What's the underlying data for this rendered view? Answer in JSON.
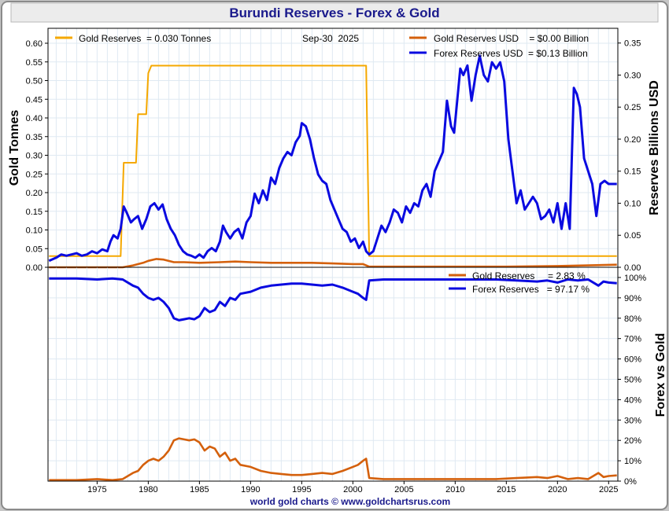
{
  "title": "Burundi Reserves - Forex & Gold",
  "footer": "world gold charts © www.goldchartsrus.com",
  "date_label": "Sep-30  2025",
  "colors": {
    "gold_tonnes": "#f5a800",
    "gold_usd": "#d4600c",
    "forex": "#0a0ae0",
    "title_text": "#1a1a8c",
    "grid": "#dfe9f2",
    "frame_bg": "#ffffff"
  },
  "chart_data": [
    {
      "type": "line",
      "title": "Burundi Reserves - Forex & Gold",
      "xlim": [
        1970.2,
        2025.9
      ],
      "x_ticks": [
        1975,
        1980,
        1985,
        1990,
        1995,
        2000,
        2005,
        2010,
        2015,
        2020,
        2025
      ],
      "left_axis": {
        "label": "Gold Tonnes",
        "ylim": [
          0,
          0.64
        ],
        "ticks": [
          "0.00",
          "0.05",
          "0.10",
          "0.15",
          "0.20",
          "0.25",
          "0.30",
          "0.35",
          "0.40",
          "0.45",
          "0.50",
          "0.55",
          "0.60"
        ]
      },
      "right_axis": {
        "label": "Reserves Billions USD",
        "ylim": [
          0,
          0.373
        ],
        "ticks": [
          "0.00",
          "0.05",
          "0.10",
          "0.15",
          "0.20",
          "0.25",
          "0.30",
          "0.35"
        ]
      },
      "grid": true,
      "legend": [
        {
          "key": "gold_tonnes",
          "text": "Gold Reserves  = 0.030 Tonnes"
        },
        {
          "key": "gold_usd",
          "text": "Gold Reserves USD    = $0.00 Billion"
        },
        {
          "key": "forex",
          "text": "Forex Reserves USD  = $0.13 Billion"
        }
      ],
      "series": [
        {
          "key": "gold_tonnes",
          "axis": "left",
          "x": [
            1970.3,
            1971.0,
            1977.3,
            1977.6,
            1978.8,
            1979.0,
            1979.8,
            1980.0,
            1980.3,
            1987.0,
            1995.0,
            2001.0,
            2001.3,
            2001.6,
            2025.8
          ],
          "y": [
            0.03,
            0.03,
            0.03,
            0.28,
            0.28,
            0.41,
            0.41,
            0.52,
            0.54,
            0.54,
            0.54,
            0.54,
            0.54,
            0.03,
            0.03
          ]
        },
        {
          "key": "gold_usd",
          "axis": "right",
          "x": [
            1970.3,
            1975.0,
            1977.5,
            1978.5,
            1979.5,
            1980.0,
            1980.8,
            1981.5,
            1982.5,
            1983.5,
            1985.0,
            1987.0,
            1988.5,
            1990.0,
            1992.0,
            1994.0,
            1996.0,
            1998.0,
            2000.0,
            2001.0,
            2001.6,
            2005.0,
            2010.0,
            2015.0,
            2020.0,
            2025.8
          ],
          "y": [
            0.0,
            0.0,
            0.0,
            0.003,
            0.007,
            0.01,
            0.013,
            0.012,
            0.008,
            0.008,
            0.007,
            0.008,
            0.009,
            0.008,
            0.007,
            0.007,
            0.007,
            0.006,
            0.005,
            0.005,
            0.001,
            0.001,
            0.001,
            0.001,
            0.002,
            0.004
          ]
        },
        {
          "key": "forex",
          "axis": "right",
          "x": [
            1970.3,
            1971.0,
            1971.5,
            1972.0,
            1972.5,
            1973.0,
            1973.5,
            1974.0,
            1974.5,
            1975.0,
            1975.5,
            1976.0,
            1976.3,
            1976.6,
            1977.0,
            1977.3,
            1977.6,
            1977.9,
            1978.3,
            1978.6,
            1979.0,
            1979.4,
            1979.8,
            1980.2,
            1980.6,
            1981.0,
            1981.4,
            1981.8,
            1982.2,
            1982.6,
            1983.0,
            1983.4,
            1983.8,
            1984.2,
            1984.6,
            1985.0,
            1985.4,
            1985.8,
            1986.2,
            1986.6,
            1987.0,
            1987.3,
            1987.6,
            1988.0,
            1988.4,
            1988.8,
            1989.2,
            1989.6,
            1990.0,
            1990.4,
            1990.8,
            1991.2,
            1991.6,
            1992.0,
            1992.4,
            1992.8,
            1993.2,
            1993.6,
            1994.0,
            1994.4,
            1994.8,
            1995.0,
            1995.4,
            1995.8,
            1996.2,
            1996.6,
            1997.0,
            1997.4,
            1997.8,
            1998.2,
            1998.6,
            1999.0,
            1999.4,
            1999.8,
            2000.2,
            2000.6,
            2001.0,
            2001.3,
            2001.6,
            2002.0,
            2002.4,
            2002.8,
            2003.2,
            2003.6,
            2004.0,
            2004.4,
            2004.8,
            2005.2,
            2005.6,
            2006.0,
            2006.4,
            2006.8,
            2007.2,
            2007.6,
            2008.0,
            2008.4,
            2008.8,
            2009.2,
            2009.6,
            2009.9,
            2010.2,
            2010.5,
            2010.8,
            2011.2,
            2011.6,
            2012.0,
            2012.4,
            2012.8,
            2013.2,
            2013.6,
            2014.0,
            2014.4,
            2014.8,
            2015.2,
            2015.6,
            2016.0,
            2016.4,
            2016.8,
            2017.2,
            2017.6,
            2018.0,
            2018.4,
            2018.8,
            2019.2,
            2019.6,
            2020.0,
            2020.4,
            2020.8,
            2021.2,
            2021.6,
            2021.9,
            2022.2,
            2022.6,
            2023.0,
            2023.4,
            2023.8,
            2024.2,
            2024.6,
            2025.0,
            2025.4,
            2025.8
          ],
          "y": [
            0.01,
            0.015,
            0.02,
            0.018,
            0.02,
            0.022,
            0.018,
            0.02,
            0.025,
            0.022,
            0.028,
            0.025,
            0.04,
            0.05,
            0.045,
            0.06,
            0.095,
            0.085,
            0.07,
            0.075,
            0.08,
            0.06,
            0.075,
            0.095,
            0.1,
            0.09,
            0.098,
            0.075,
            0.06,
            0.05,
            0.035,
            0.025,
            0.02,
            0.018,
            0.015,
            0.02,
            0.015,
            0.025,
            0.03,
            0.025,
            0.04,
            0.065,
            0.055,
            0.045,
            0.055,
            0.06,
            0.045,
            0.07,
            0.08,
            0.115,
            0.1,
            0.12,
            0.105,
            0.14,
            0.13,
            0.155,
            0.17,
            0.18,
            0.175,
            0.195,
            0.205,
            0.225,
            0.22,
            0.2,
            0.17,
            0.145,
            0.135,
            0.13,
            0.105,
            0.09,
            0.075,
            0.06,
            0.055,
            0.04,
            0.045,
            0.03,
            0.04,
            0.025,
            0.02,
            0.025,
            0.045,
            0.065,
            0.055,
            0.07,
            0.09,
            0.085,
            0.07,
            0.095,
            0.085,
            0.1,
            0.095,
            0.12,
            0.13,
            0.11,
            0.15,
            0.165,
            0.18,
            0.26,
            0.22,
            0.21,
            0.26,
            0.31,
            0.3,
            0.315,
            0.26,
            0.3,
            0.33,
            0.3,
            0.29,
            0.32,
            0.31,
            0.32,
            0.29,
            0.2,
            0.15,
            0.1,
            0.12,
            0.09,
            0.1,
            0.11,
            0.1,
            0.075,
            0.08,
            0.09,
            0.07,
            0.1,
            0.06,
            0.1,
            0.06,
            0.28,
            0.27,
            0.25,
            0.17,
            0.15,
            0.13,
            0.08,
            0.13,
            0.135,
            0.13,
            0.13,
            0.13
          ]
        }
      ]
    },
    {
      "type": "line",
      "xlim": [
        1970.2,
        2025.9
      ],
      "right_axis": {
        "label": "Forex vs Gold",
        "ylim": [
          0,
          105
        ],
        "ticks": [
          "0%",
          "10%",
          "20%",
          "30%",
          "40%",
          "50%",
          "60%",
          "70%",
          "80%",
          "90%",
          "100%"
        ]
      },
      "grid": true,
      "legend": [
        {
          "key": "gold_usd",
          "text": "Gold Reserves     = 2.83 %"
        },
        {
          "key": "forex",
          "text": "Forex Reserves   = 97.17 %"
        }
      ],
      "series": [
        {
          "key": "forex",
          "x": [
            1970.3,
            1973.0,
            1975.0,
            1976.5,
            1977.5,
            1978.5,
            1979.0,
            1979.5,
            1980.0,
            1980.5,
            1981.0,
            1981.5,
            1982.0,
            1982.5,
            1983.0,
            1983.5,
            1984.0,
            1984.5,
            1985.0,
            1985.5,
            1986.0,
            1986.5,
            1987.0,
            1987.5,
            1988.0,
            1988.5,
            1989.0,
            1990.0,
            1991.0,
            1992.0,
            1993.0,
            1994.0,
            1995.0,
            1996.0,
            1997.0,
            1998.0,
            1999.0,
            2000.0,
            2000.5,
            2001.0,
            2001.3,
            2001.6,
            2003.0,
            2005.0,
            2008.0,
            2010.0,
            2012.0,
            2014.0,
            2016.0,
            2018.0,
            2019.0,
            2020.0,
            2021.0,
            2022.0,
            2023.0,
            2024.0,
            2024.5,
            2025.0,
            2025.8
          ],
          "y": [
            99.5,
            99.5,
            99.0,
            99.5,
            99.0,
            96.0,
            95.0,
            92.0,
            90.0,
            89.0,
            90.0,
            88.0,
            85.0,
            80.0,
            79.0,
            79.5,
            80.0,
            79.5,
            81.0,
            85.0,
            83.0,
            84.0,
            88.0,
            86.0,
            90.0,
            89.0,
            92.0,
            93.0,
            95.0,
            96.0,
            96.5,
            97.0,
            97.0,
            96.5,
            96.0,
            96.5,
            95.0,
            93.0,
            92.0,
            90.0,
            89.0,
            98.5,
            99.0,
            99.0,
            99.0,
            99.0,
            99.0,
            99.0,
            98.5,
            98.0,
            98.5,
            97.5,
            99.0,
            98.5,
            99.0,
            96.0,
            98.0,
            97.5,
            97.2
          ]
        },
        {
          "key": "gold_usd",
          "x": [
            1970.3,
            1973.0,
            1975.0,
            1976.5,
            1977.5,
            1978.5,
            1979.0,
            1979.5,
            1980.0,
            1980.5,
            1981.0,
            1981.5,
            1982.0,
            1982.5,
            1983.0,
            1983.5,
            1984.0,
            1984.5,
            1985.0,
            1985.5,
            1986.0,
            1986.5,
            1987.0,
            1987.5,
            1988.0,
            1988.5,
            1989.0,
            1990.0,
            1991.0,
            1992.0,
            1993.0,
            1994.0,
            1995.0,
            1996.0,
            1997.0,
            1998.0,
            1999.0,
            2000.0,
            2000.5,
            2001.0,
            2001.3,
            2001.6,
            2003.0,
            2005.0,
            2008.0,
            2010.0,
            2012.0,
            2014.0,
            2016.0,
            2018.0,
            2019.0,
            2020.0,
            2021.0,
            2022.0,
            2023.0,
            2024.0,
            2024.5,
            2025.0,
            2025.8
          ],
          "y": [
            0.5,
            0.5,
            1.0,
            0.5,
            1.0,
            4.0,
            5.0,
            8.0,
            10.0,
            11.0,
            10.0,
            12.0,
            15.0,
            20.0,
            21.0,
            20.5,
            20.0,
            20.5,
            19.0,
            15.0,
            17.0,
            16.0,
            12.0,
            14.0,
            10.0,
            11.0,
            8.0,
            7.0,
            5.0,
            4.0,
            3.5,
            3.0,
            3.0,
            3.5,
            4.0,
            3.5,
            5.0,
            7.0,
            8.0,
            10.0,
            11.0,
            1.5,
            1.0,
            1.0,
            1.0,
            1.0,
            1.0,
            1.0,
            1.5,
            2.0,
            1.5,
            2.5,
            1.0,
            1.5,
            1.0,
            4.0,
            2.0,
            2.5,
            2.8
          ]
        }
      ]
    }
  ]
}
